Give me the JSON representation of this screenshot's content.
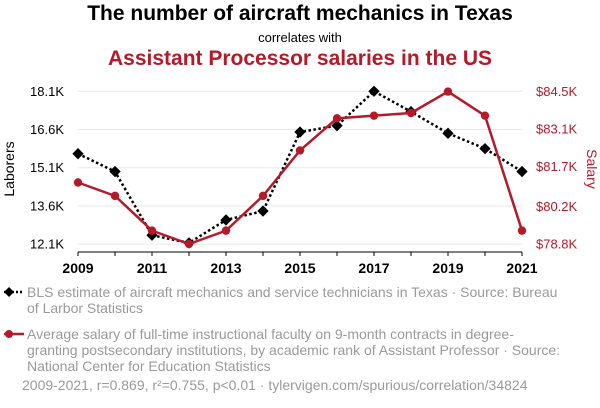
{
  "header": {
    "title": "The number of aircraft mechanics in Texas",
    "connector": "correlates with",
    "subtitle": "Assistant Processor salaries in the US"
  },
  "chart_data": {
    "type": "line",
    "x": [
      2009,
      2010,
      2011,
      2012,
      2013,
      2014,
      2015,
      2016,
      2017,
      2018,
      2019,
      2020,
      2021
    ],
    "x_tick_labels": [
      "2009",
      "2011",
      "2013",
      "2015",
      "2017",
      "2019",
      "2021"
    ],
    "y_left": {
      "label": "Laborers",
      "ticks": [
        12100,
        13600,
        15100,
        16600,
        18100
      ],
      "tick_labels": [
        "12.1K",
        "13.6K",
        "15.1K",
        "16.6K",
        "18.1K"
      ],
      "range": [
        11950,
        18150
      ]
    },
    "y_right": {
      "label": "Salary",
      "ticks": [
        78800,
        80200,
        81700,
        83100,
        84500
      ],
      "tick_labels": [
        "$78.8K",
        "$80.2K",
        "$81.7K",
        "$83.1K",
        "$84.5K"
      ],
      "range": [
        78650,
        84560
      ]
    },
    "series": [
      {
        "name": "BLS estimate of aircraft mechanics and service technicians in Texas",
        "axis": "left",
        "color": "#000000",
        "style": "dotted",
        "marker": "diamond",
        "values": [
          15650,
          14950,
          12450,
          12150,
          13050,
          13400,
          16500,
          16750,
          18100,
          17300,
          16450,
          15850,
          14950
        ]
      },
      {
        "name": "Average salary of full-time instructional faculty on 9-month contracts in degree-granting postsecondary institutions, by academic rank of Assistant Professor",
        "axis": "right",
        "color": "#b5192a",
        "style": "solid",
        "marker": "circle",
        "values": [
          81100,
          80600,
          79300,
          78800,
          79300,
          80600,
          82300,
          83500,
          83600,
          83700,
          84500,
          83600,
          79300
        ]
      }
    ]
  },
  "legend": [
    {
      "text": "BLS estimate of aircraft mechanics and service technicians in Texas · Source: Bureau of Larbor Statistics"
    },
    {
      "text": "Average salary of full-time instructional faculty on 9-month contracts in degree-granting postsecondary institutions, by academic rank of Assistant Professor · Source: National Center for Education Statistics"
    }
  ],
  "footer": "2009-2021, r=0.869, r²=0.755, p<0.01 · tylervigen.com/spurious/correlation/34824",
  "colors": {
    "left": "#000000",
    "right": "#b5192a",
    "muted": "#9a9a9a",
    "grid": "#e8e8e8"
  }
}
